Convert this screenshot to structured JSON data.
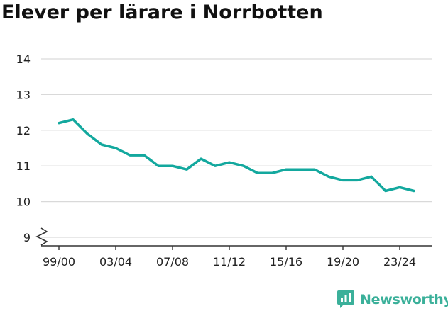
{
  "chart_data": {
    "type": "line",
    "title": "Elever per lärare i Norrbotten",
    "xlabel": "",
    "ylabel": "",
    "ylim": [
      9,
      14
    ],
    "y_ticks": [
      9,
      10,
      11,
      12,
      13,
      14
    ],
    "y_axis_broken": true,
    "grid": true,
    "x": [
      "99/00",
      "00/01",
      "01/02",
      "02/03",
      "03/04",
      "04/05",
      "05/06",
      "06/07",
      "07/08",
      "08/09",
      "09/10",
      "10/11",
      "11/12",
      "12/13",
      "13/14",
      "14/15",
      "15/16",
      "16/17",
      "17/18",
      "18/19",
      "19/20",
      "20/21",
      "21/22",
      "22/23",
      "23/24",
      "24/25"
    ],
    "x_tick_labels": [
      "99/00",
      "03/04",
      "07/08",
      "11/12",
      "15/16",
      "19/20",
      "23/24"
    ],
    "series": [
      {
        "name": "",
        "color": "#13a89e",
        "values": [
          12.2,
          12.3,
          11.9,
          11.6,
          11.5,
          11.3,
          11.3,
          11.0,
          11.0,
          10.9,
          11.2,
          11.0,
          11.1,
          11.0,
          10.8,
          10.8,
          10.9,
          10.9,
          10.9,
          10.7,
          10.6,
          10.6,
          10.7,
          10.3,
          10.4,
          10.3
        ]
      }
    ]
  },
  "branding": {
    "name": "Newsworthy",
    "icon": "newsworthy-logo-icon",
    "color": "#3bb09a"
  },
  "colors": {
    "line": "#13a89e",
    "grid": "#d9d9d9",
    "axis": "#333333",
    "text": "#222222"
  }
}
